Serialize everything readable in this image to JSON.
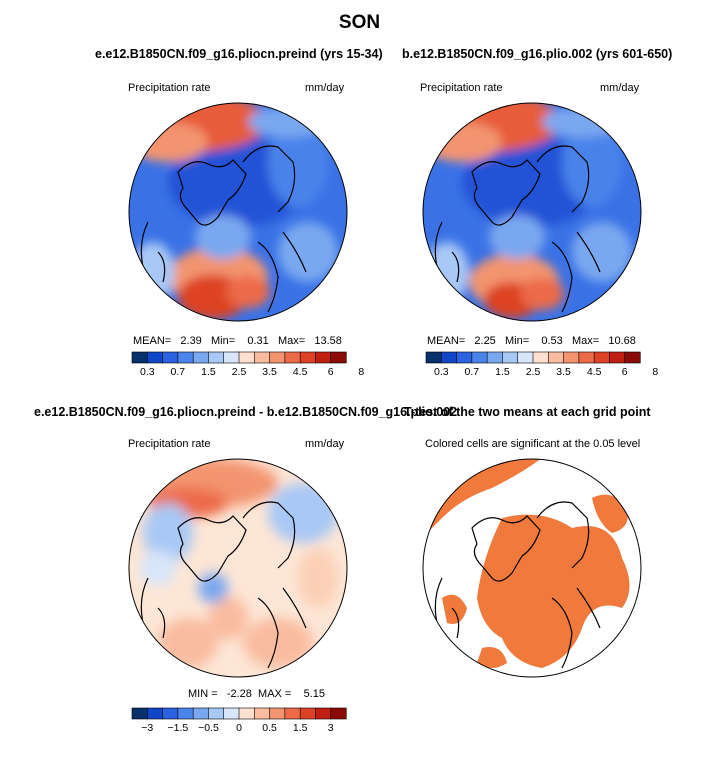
{
  "figure": {
    "title": "SON"
  },
  "panels": [
    {
      "title": "e.e12.B1850CN.f09_g16.pliocn.preind (yrs 15-34)",
      "variable": "Precipitation rate",
      "units": "mm/day",
      "stats": {
        "mean_label": "MEAN=",
        "mean": "2.39",
        "min_label": "Min=",
        "min": "0.31",
        "max_label": "Max=",
        "max": "13.58"
      },
      "colorbar_labels": [
        "0.3",
        "0.7",
        "1.5",
        "2.5",
        "3.5",
        "4.5",
        "6",
        "8"
      ]
    },
    {
      "title": "b.e12.B1850CN.f09_g16.plio.002 (yrs 601-650)",
      "variable": "Precipitation rate",
      "units": "mm/day",
      "stats": {
        "mean_label": "MEAN=",
        "mean": "2.25",
        "min_label": "Min=",
        "min": "0.53",
        "max_label": "Max=",
        "max": "10.68"
      },
      "colorbar_labels": [
        "0.3",
        "0.7",
        "1.5",
        "2.5",
        "3.5",
        "4.5",
        "6",
        "8"
      ]
    },
    {
      "title": "e.e12.B1850CN.f09_g16.pliocn.preind - b.e12.B1850CN.f09_g16.plio.002",
      "variable": "Precipitation rate",
      "units": "mm/day",
      "stats": {
        "min_label": "MIN =",
        "min": "-2.28",
        "max_label": "MAX =",
        "max": "5.15"
      },
      "colorbar_labels": [
        "-3",
        "-1.5",
        "-0.5",
        "0",
        "0.5",
        "1.5",
        "3"
      ]
    },
    {
      "title": "T-test of the two means at each grid point",
      "note": "Colored cells are significant at the 0.05 level"
    }
  ],
  "colors": {
    "abs_scale": [
      "#08306b",
      "#1046c8",
      "#2a62e0",
      "#4a83ea",
      "#7aa8f0",
      "#a8c8f5",
      "#d8e6fb",
      "#fde0cf",
      "#f9bca0",
      "#f39470",
      "#ec6a48",
      "#dd4224",
      "#c01e10",
      "#8a0a05"
    ],
    "diff_scale": [
      "#08306b",
      "#1046c8",
      "#2a62e0",
      "#4a83ea",
      "#7aa8f0",
      "#a8c8f5",
      "#d8e6fb",
      "#fde0cf",
      "#f9bca0",
      "#f39470",
      "#ec6a48",
      "#dd4224",
      "#c01e10",
      "#8a0a05"
    ],
    "significance": "#f07a3c"
  }
}
